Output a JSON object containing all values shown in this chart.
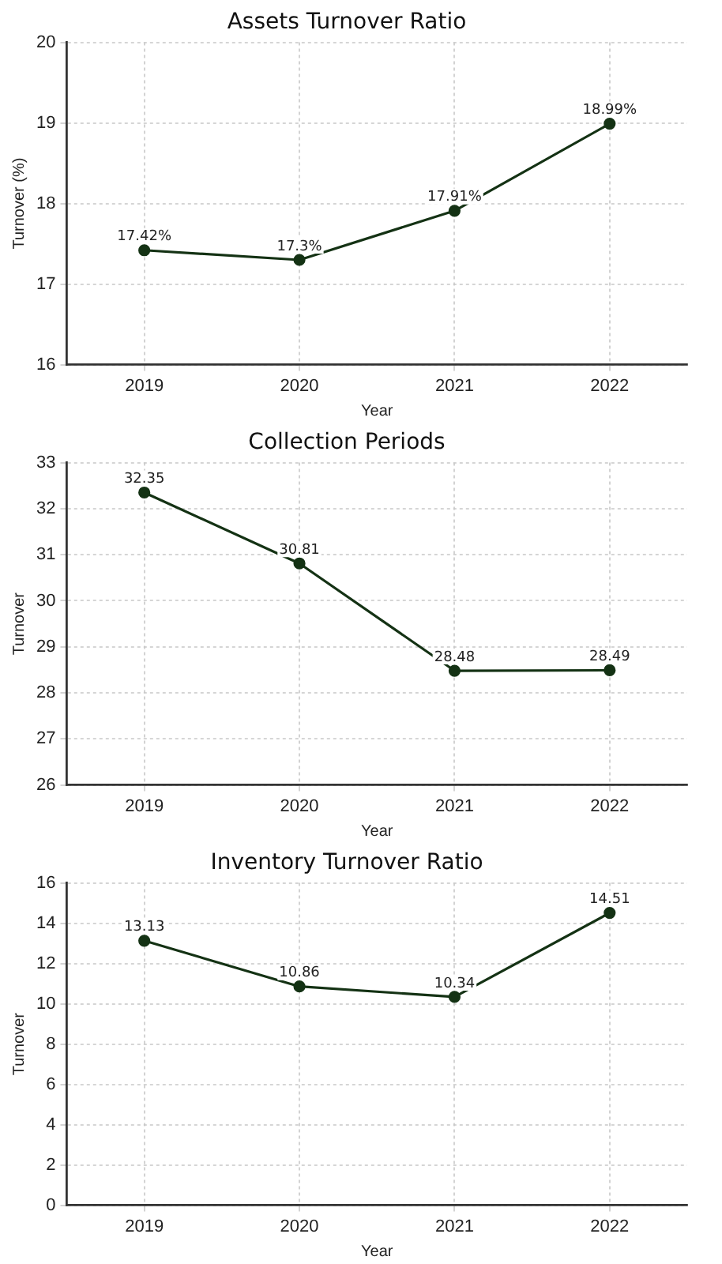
{
  "chart_data": [
    {
      "type": "line",
      "title": "Assets Turnover Ratio",
      "xlabel": "Year",
      "ylabel": "Turnover (%)",
      "categories": [
        "2019",
        "2020",
        "2021",
        "2022"
      ],
      "series": [
        {
          "color": "#143214",
          "values": [
            17.42,
            17.3,
            17.91,
            18.99
          ],
          "value_labels": [
            "17.42%",
            "17.3%",
            "17.91%",
            "18.99%"
          ]
        }
      ],
      "ylim": [
        16,
        20
      ],
      "yticks": [
        16,
        17,
        18,
        19,
        20
      ],
      "grid": true,
      "marker": "circle",
      "line_style": "solid"
    },
    {
      "type": "line",
      "title": "Collection Periods",
      "xlabel": "Year",
      "ylabel": "Turnover",
      "categories": [
        "2019",
        "2020",
        "2021",
        "2022"
      ],
      "series": [
        {
          "color": "#143214",
          "values": [
            32.35,
            30.81,
            28.48,
            28.49
          ]
        }
      ],
      "ylim": [
        26,
        33
      ],
      "yticks": [
        26,
        27,
        28,
        29,
        30,
        31,
        32,
        33
      ],
      "grid": true,
      "marker": "circle",
      "line_style": "solid",
      "data_labels": true
    },
    {
      "type": "line",
      "title": "Inventory Turnover Ratio",
      "xlabel": "Year",
      "ylabel": "Turnover",
      "categories": [
        "2019",
        "2020",
        "2021",
        "2022"
      ],
      "series": [
        {
          "color": "#143214",
          "values": [
            13.13,
            10.86,
            10.34,
            14.51
          ]
        }
      ],
      "ylim": [
        0,
        16
      ],
      "yticks": [
        0,
        2,
        4,
        6,
        8,
        10,
        12,
        14,
        16
      ],
      "grid": true,
      "marker": "circle",
      "line_style": "solid",
      "data_labels": true
    }
  ]
}
